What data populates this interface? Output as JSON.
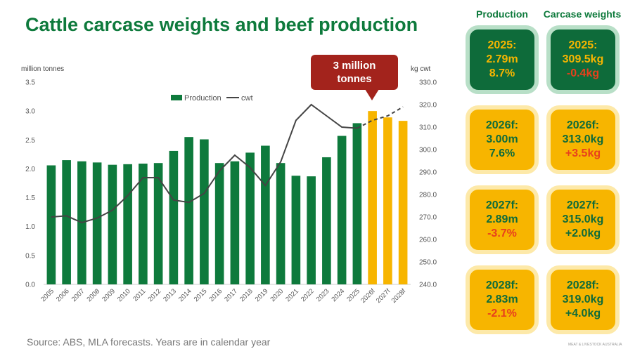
{
  "title": "Cattle carcase weights and beef production",
  "unit_left": "million tonnes",
  "unit_right": "kg cwt",
  "source": "Source: ABS, MLA forecasts. Years are in calendar year",
  "callout": [
    "3 million",
    "tonnes"
  ],
  "columns": {
    "production": "Production",
    "carcase": "Carcase weights"
  },
  "cards": [
    {
      "prod": [
        "2025:",
        "2.79m",
        "8.7%"
      ],
      "cwt": [
        "2025:",
        "309.5kg",
        "-0.4kg"
      ],
      "style": "green",
      "prod_neg": false,
      "cwt_neg": true
    },
    {
      "prod": [
        "2026f:",
        "3.00m",
        "7.6%"
      ],
      "cwt": [
        "2026f:",
        "313.0kg",
        "+3.5kg"
      ],
      "style": "yellow",
      "prod_neg": false,
      "cwt_neg": true
    },
    {
      "prod": [
        "2027f:",
        "2.89m",
        "-3.7%"
      ],
      "cwt": [
        "2027f:",
        "315.0kg",
        "+2.0kg"
      ],
      "style": "yellow",
      "prod_neg": true,
      "cwt_neg": false
    },
    {
      "prod": [
        "2028f:",
        "2.83m",
        "-2.1%"
      ],
      "cwt": [
        "2028f:",
        "319.0kg",
        "+4.0kg"
      ],
      "style": "yellow",
      "prod_neg": true,
      "cwt_neg": false
    }
  ],
  "footer_mark": "MEAT & LIVESTOCK AUSTRALIA",
  "chart_data": {
    "type": "bar",
    "categories": [
      "2005",
      "2006",
      "2007",
      "2008",
      "2009",
      "2010",
      "2011",
      "2012",
      "2013",
      "2014",
      "2015",
      "2016",
      "2017",
      "2018",
      "2019",
      "2020",
      "2021",
      "2022",
      "2023",
      "2024",
      "2025",
      "2026f",
      "2027f",
      "2028f"
    ],
    "series": [
      {
        "name": "Production",
        "type": "bar",
        "axis": "left",
        "values": [
          2.06,
          2.15,
          2.13,
          2.11,
          2.07,
          2.08,
          2.09,
          2.1,
          2.31,
          2.55,
          2.51,
          2.1,
          2.13,
          2.28,
          2.4,
          2.1,
          1.88,
          1.87,
          2.2,
          2.57,
          2.79,
          3.0,
          2.89,
          2.83
        ],
        "colors": [
          "#0e7a3c",
          "#f7b500"
        ],
        "forecast_from": "2026f"
      },
      {
        "name": "cwt",
        "type": "line",
        "axis": "right",
        "values": [
          270.0,
          270.5,
          267.5,
          269.5,
          273.0,
          279.5,
          287.5,
          287.5,
          277.5,
          276.5,
          280.5,
          290.5,
          297.5,
          292.0,
          284.0,
          294.5,
          313.0,
          320.0,
          315.0,
          310.0,
          309.5,
          313.0,
          315.0,
          319.0
        ],
        "color": "#444444",
        "dashed_from": "2025"
      }
    ],
    "legend": [
      "Production",
      "cwt"
    ],
    "legend_position": "top",
    "y_left": {
      "min": 0,
      "max": 3.5,
      "ticks": [
        "0.0",
        "0.5",
        "1.0",
        "1.5",
        "2.0",
        "2.5",
        "3.0",
        "3.5"
      ]
    },
    "y_right": {
      "min": 240,
      "max": 330,
      "ticks": [
        "240.0",
        "250.0",
        "260.0",
        "270.0",
        "280.0",
        "290.0",
        "300.0",
        "310.0",
        "320.0",
        "330.0"
      ]
    },
    "grid": false
  }
}
